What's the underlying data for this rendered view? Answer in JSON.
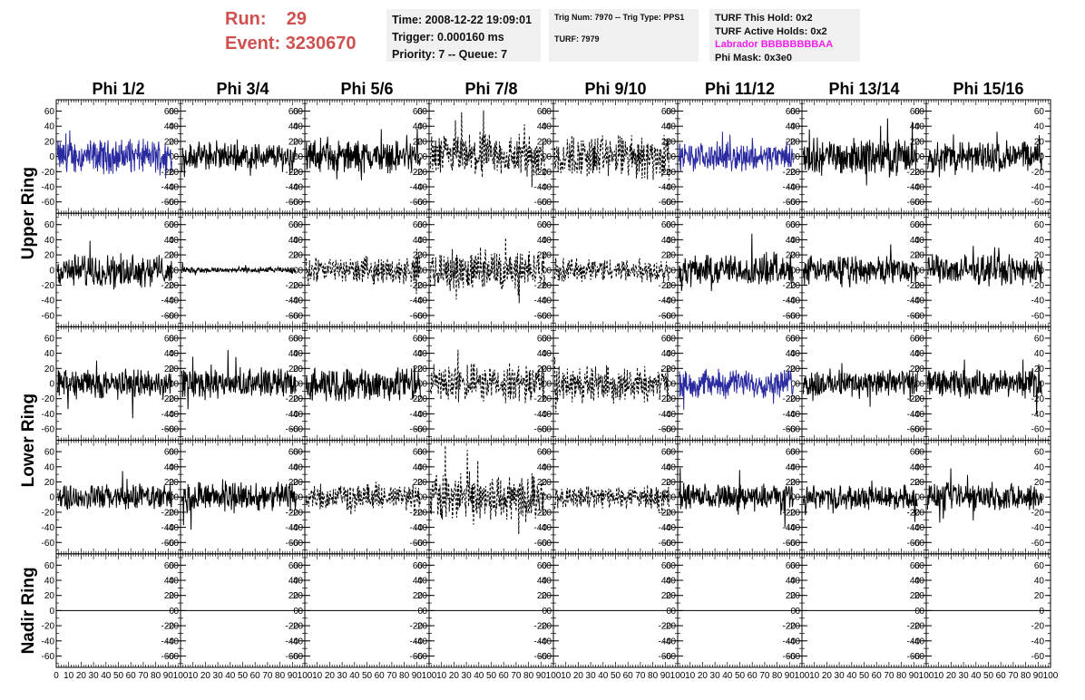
{
  "header": {
    "run_label": "Run:",
    "run_value": "29",
    "event_label": "Event:",
    "event_value": "3230670"
  },
  "info_time": {
    "time": "Time: 2008-12-22 19:09:01",
    "trigger": "Trigger: 0.000160 ms",
    "priority": "Priority: 7 -- Queue: 7"
  },
  "info_trig": {
    "trig": "Trig Num: 7970 -- Trig Type: PPS1",
    "turf": "TURF: 7979"
  },
  "info_turf": {
    "this_hold": "TURF This Hold: 0x2",
    "active_holds": "TURF Active Holds: 0x2",
    "labrador": "Labrador BBBBBBBBAA",
    "phi_mask": "Phi Mask: 0x3e0"
  },
  "colors": {
    "header_red": "#d05050",
    "labrador_magenta": "#ee20ee",
    "masked_trace": "#2a2aa0",
    "normal_trace": "#000000",
    "info_bg": "#f0f0f0"
  },
  "chart_data": {
    "type": "line",
    "columns": [
      "Phi 1/2",
      "Phi 3/4",
      "Phi 5/6",
      "Phi 7/8",
      "Phi 9/10",
      "Phi 11/12",
      "Phi 13/14",
      "Phi 15/16"
    ],
    "rows": [
      "Upper Ring",
      "Upper Ring",
      "Lower Ring",
      "Lower Ring",
      "Nadir Ring"
    ],
    "row_labels": [
      "Upper Ring",
      "Lower Ring",
      "Nadir Ring"
    ],
    "xlim": [
      0,
      100
    ],
    "ylim": [
      -75,
      75
    ],
    "x_ticks": [
      0,
      10,
      20,
      30,
      40,
      50,
      60,
      70,
      80,
      90,
      100
    ],
    "x_tick_labels": [
      "0",
      "10",
      "20",
      "30",
      "40",
      "50",
      "60",
      "70",
      "80",
      "90",
      "100"
    ],
    "y_ticks": [
      60,
      40,
      20,
      0,
      -20,
      -40,
      -60
    ],
    "y_tick_labels": [
      "60",
      "40",
      "20",
      "0",
      "-20",
      "-40",
      "-60"
    ],
    "panel_styles": [
      [
        "blue",
        "solid",
        "solid",
        "dashed",
        "dashed",
        "blue",
        "solid",
        "solid"
      ],
      [
        "solid",
        "solid",
        "dashed",
        "dashed",
        "dashed",
        "solid",
        "solid",
        "solid"
      ],
      [
        "solid",
        "solid",
        "solid",
        "dashed",
        "dashed",
        "blue",
        "solid",
        "solid"
      ],
      [
        "solid",
        "solid",
        "dashed",
        "dashed",
        "dashed",
        "solid",
        "solid",
        "solid"
      ],
      [
        "flat",
        "flat",
        "flat",
        "flat",
        "flat",
        "flat",
        "flat",
        "flat"
      ]
    ],
    "panel_amplitudes": [
      [
        17,
        14,
        16,
        22,
        22,
        14,
        18,
        16
      ],
      [
        16,
        3,
        13,
        20,
        12,
        16,
        14,
        15
      ],
      [
        15,
        15,
        17,
        19,
        18,
        14,
        14,
        14
      ],
      [
        13,
        15,
        13,
        24,
        11,
        13,
        12,
        14
      ],
      [
        0,
        0,
        0,
        0,
        0,
        0,
        0,
        0
      ]
    ]
  }
}
